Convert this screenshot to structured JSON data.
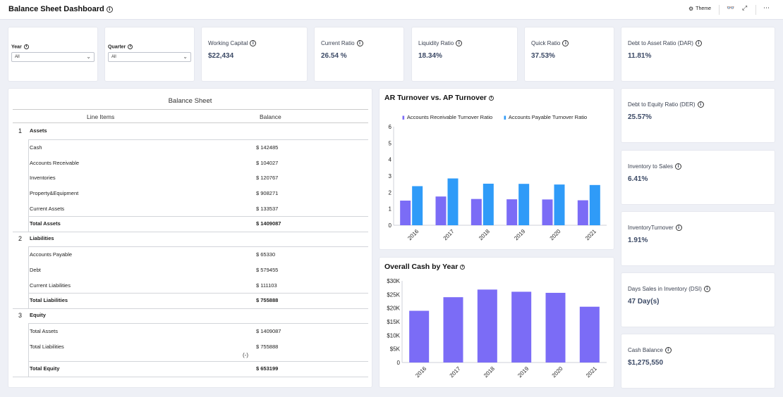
{
  "header": {
    "title": "Balance Sheet Dashboard",
    "theme_label": "Theme"
  },
  "filters": {
    "year": {
      "label": "Year",
      "value": "All"
    },
    "quarter": {
      "label": "Quarter",
      "value": "All"
    }
  },
  "kpis": {
    "working_capital": {
      "label": "Working Capital",
      "value": "$22,434"
    },
    "current_ratio": {
      "label": "Current Ratio",
      "value": "26.54 %"
    },
    "liquidity_ratio": {
      "label": "Liquidity Ratio",
      "value": "18.34%"
    },
    "quick_ratio": {
      "label": "Quick Ratio",
      "value": "37.53%"
    },
    "dar": {
      "label": "Debt to Asset Ratio (DAR)",
      "value": "11.81%"
    },
    "der": {
      "label": "Debt to Equity Ratio (DER)",
      "value": "25.57%"
    },
    "inv_sales": {
      "label": "Inventory to Sales",
      "value": "6.41%"
    },
    "inv_turnover": {
      "label": "InventoryTurnover",
      "value": "1.91%"
    },
    "dsi": {
      "label": "Days Sales in Inventory (DSI)",
      "value": "47 Day(s)"
    },
    "cash_balance": {
      "label": "Cash Balance",
      "value": "$1,275,550"
    }
  },
  "balance_sheet": {
    "title": "Balance Sheet",
    "col_items": "Line Items",
    "col_balance": "Balance",
    "operator": "(-)",
    "sections": [
      {
        "num": "1",
        "name": "Assets",
        "rows": [
          {
            "name": "Cash",
            "value": "$ 142485"
          },
          {
            "name": "Accounts Receivable",
            "value": "$ 104027"
          },
          {
            "name": "Inventories",
            "value": "$ 120767"
          },
          {
            "name": "Property&Equipment",
            "value": "$ 908271"
          },
          {
            "name": "Current Assets",
            "value": "$ 133537"
          }
        ],
        "total": {
          "name": "Total Assets",
          "value": "$ 1409087"
        }
      },
      {
        "num": "2",
        "name": "Liabilities",
        "rows": [
          {
            "name": "Accounts Payable",
            "value": "$ 65330"
          },
          {
            "name": "Debt",
            "value": "$ 579455"
          },
          {
            "name": "Current Liabilities",
            "value": "$ 111103"
          }
        ],
        "total": {
          "name": "Total Liabilities",
          "value": "$ 755888"
        }
      },
      {
        "num": "3",
        "name": "Equity",
        "rows": [
          {
            "name": "Total Assets",
            "value": "$ 1409087"
          },
          {
            "name": "Total Liabilities",
            "value": "$ 755888"
          }
        ],
        "total": {
          "name": "Total Equity",
          "value": "$ 653199"
        }
      }
    ]
  },
  "chart_data": [
    {
      "type": "bar",
      "title": "AR Turnover vs. AP Turnover",
      "categories": [
        "2016",
        "2017",
        "2018",
        "2019",
        "2020",
        "2021"
      ],
      "series": [
        {
          "name": "Accounts Receivable Turnover Ratio",
          "color": "#7b6cf6",
          "values": [
            1.5,
            1.75,
            1.6,
            1.58,
            1.57,
            1.52
          ]
        },
        {
          "name": "Accounts Payable Turnover Ratio",
          "color": "#2f9bf8",
          "values": [
            2.38,
            2.85,
            2.53,
            2.52,
            2.48,
            2.45
          ]
        }
      ],
      "y_ticks": [
        "0",
        "1",
        "2",
        "3",
        "4",
        "5",
        "6"
      ],
      "ylim": [
        0,
        6
      ],
      "legend": "top"
    },
    {
      "type": "bar",
      "title": "Overall Cash by Year",
      "categories": [
        "2016",
        "2017",
        "2018",
        "2019",
        "2020",
        "2021"
      ],
      "series": [
        {
          "color": "#7b6cf6",
          "values": [
            19000,
            24000,
            26800,
            26000,
            25600,
            20500
          ]
        }
      ],
      "y_ticks": [
        "0",
        "$5K",
        "$10K",
        "$15K",
        "$20K",
        "$25K",
        "$30K"
      ],
      "ylim": [
        0,
        30000
      ]
    }
  ]
}
